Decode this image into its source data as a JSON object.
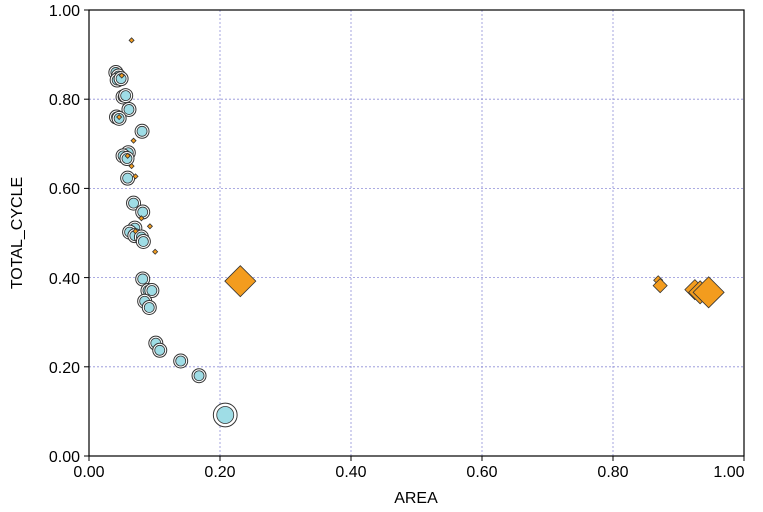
{
  "chart_data": {
    "type": "scatter",
    "xlabel": "AREA",
    "ylabel": "TOTAL_CYCLE",
    "xlim": [
      0,
      1
    ],
    "ylim": [
      0,
      1
    ],
    "grid": true,
    "x_ticks": [
      "0.00",
      "0.20",
      "0.40",
      "0.60",
      "0.80",
      "1.00"
    ],
    "y_ticks": [
      "0.00",
      "0.20",
      "0.40",
      "0.60",
      "0.80",
      "1.00"
    ],
    "series": [
      {
        "marker": "circle",
        "color": "#9fdde6",
        "points": [
          {
            "x": 0.041,
            "y": 0.86,
            "s": 1
          },
          {
            "x": 0.045,
            "y": 0.852,
            "s": 1
          },
          {
            "x": 0.043,
            "y": 0.843,
            "s": 1
          },
          {
            "x": 0.049,
            "y": 0.846,
            "s": 1
          },
          {
            "x": 0.052,
            "y": 0.805,
            "s": 1
          },
          {
            "x": 0.056,
            "y": 0.808,
            "s": 1
          },
          {
            "x": 0.061,
            "y": 0.777,
            "s": 1
          },
          {
            "x": 0.042,
            "y": 0.76,
            "s": 1
          },
          {
            "x": 0.046,
            "y": 0.757,
            "s": 1
          },
          {
            "x": 0.081,
            "y": 0.728,
            "s": 1
          },
          {
            "x": 0.06,
            "y": 0.68,
            "s": 1
          },
          {
            "x": 0.052,
            "y": 0.673,
            "s": 1
          },
          {
            "x": 0.058,
            "y": 0.667,
            "s": 1
          },
          {
            "x": 0.059,
            "y": 0.623,
            "s": 1
          },
          {
            "x": 0.068,
            "y": 0.567,
            "s": 1
          },
          {
            "x": 0.082,
            "y": 0.547,
            "s": 1
          },
          {
            "x": 0.07,
            "y": 0.511,
            "s": 1
          },
          {
            "x": 0.062,
            "y": 0.502,
            "s": 1
          },
          {
            "x": 0.07,
            "y": 0.494,
            "s": 1
          },
          {
            "x": 0.08,
            "y": 0.491,
            "s": 1
          },
          {
            "x": 0.083,
            "y": 0.481,
            "s": 1
          },
          {
            "x": 0.082,
            "y": 0.397,
            "s": 1
          },
          {
            "x": 0.09,
            "y": 0.371,
            "s": 1
          },
          {
            "x": 0.096,
            "y": 0.371,
            "s": 1
          },
          {
            "x": 0.085,
            "y": 0.347,
            "s": 1
          },
          {
            "x": 0.092,
            "y": 0.333,
            "s": 1
          },
          {
            "x": 0.102,
            "y": 0.253,
            "s": 1
          },
          {
            "x": 0.108,
            "y": 0.237,
            "s": 1
          },
          {
            "x": 0.14,
            "y": 0.213,
            "s": 1
          },
          {
            "x": 0.168,
            "y": 0.18,
            "s": 1
          },
          {
            "x": 0.208,
            "y": 0.092,
            "s": 1.7
          }
        ]
      },
      {
        "marker": "diamond",
        "color": "#f39c1e",
        "points": [
          {
            "x": 0.065,
            "y": 0.932,
            "s": 0.5
          },
          {
            "x": 0.05,
            "y": 0.853,
            "s": 0.5
          },
          {
            "x": 0.046,
            "y": 0.76,
            "s": 0.5
          },
          {
            "x": 0.068,
            "y": 0.707,
            "s": 0.5
          },
          {
            "x": 0.059,
            "y": 0.673,
            "s": 0.5
          },
          {
            "x": 0.065,
            "y": 0.65,
            "s": 0.5
          },
          {
            "x": 0.071,
            "y": 0.627,
            "s": 0.5
          },
          {
            "x": 0.08,
            "y": 0.533,
            "s": 0.5
          },
          {
            "x": 0.093,
            "y": 0.515,
            "s": 0.5
          },
          {
            "x": 0.071,
            "y": 0.504,
            "s": 0.5
          },
          {
            "x": 0.101,
            "y": 0.458,
            "s": 0.5
          },
          {
            "x": 0.231,
            "y": 0.392,
            "s": 3.1
          },
          {
            "x": 0.869,
            "y": 0.394,
            "s": 0.9
          },
          {
            "x": 0.872,
            "y": 0.382,
            "s": 1.4
          },
          {
            "x": 0.925,
            "y": 0.373,
            "s": 2.0
          },
          {
            "x": 0.933,
            "y": 0.367,
            "s": 2.3
          },
          {
            "x": 0.946,
            "y": 0.367,
            "s": 3.1
          }
        ]
      }
    ]
  }
}
